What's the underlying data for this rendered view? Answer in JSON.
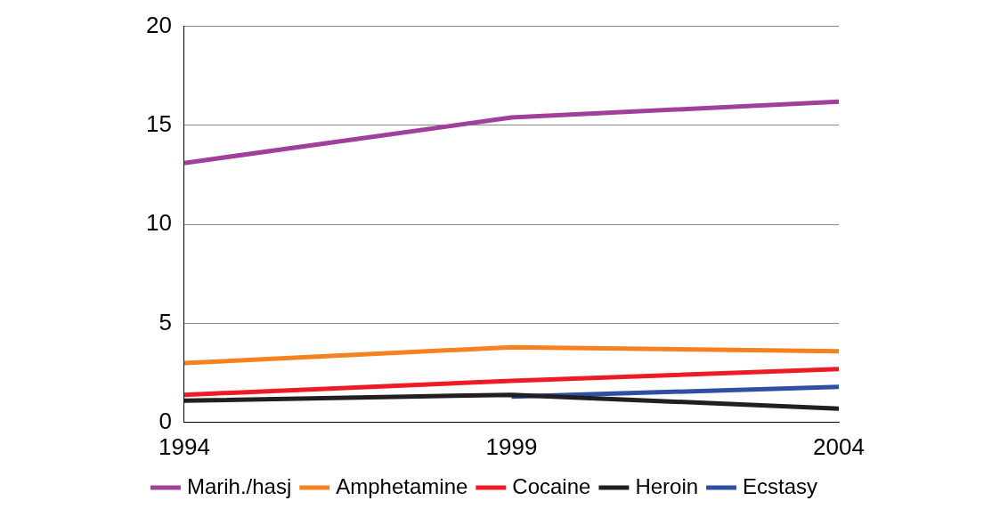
{
  "chart_data": {
    "type": "line",
    "categories": [
      "1994",
      "1999",
      "2004"
    ],
    "series": [
      {
        "name": "Marih./hasj",
        "color": "#a0409a",
        "values": [
          13.1,
          15.4,
          16.2
        ]
      },
      {
        "name": "Amphetamine",
        "color": "#f5821f",
        "values": [
          3.0,
          3.8,
          3.6
        ]
      },
      {
        "name": "Cocaine",
        "color": "#ed1c24",
        "values": [
          1.4,
          2.1,
          2.7
        ]
      },
      {
        "name": "Heroin",
        "color": "#231f20",
        "values": [
          1.1,
          1.4,
          0.7
        ]
      },
      {
        "name": "Ecstasy",
        "color": "#2e4fa3",
        "values": [
          null,
          1.3,
          1.8
        ]
      }
    ],
    "ylim": [
      0,
      20
    ],
    "yticks": [
      0,
      5,
      10,
      15,
      20
    ],
    "grid": "y",
    "legend": "bottom",
    "marker": "none",
    "line_style": "solid"
  }
}
